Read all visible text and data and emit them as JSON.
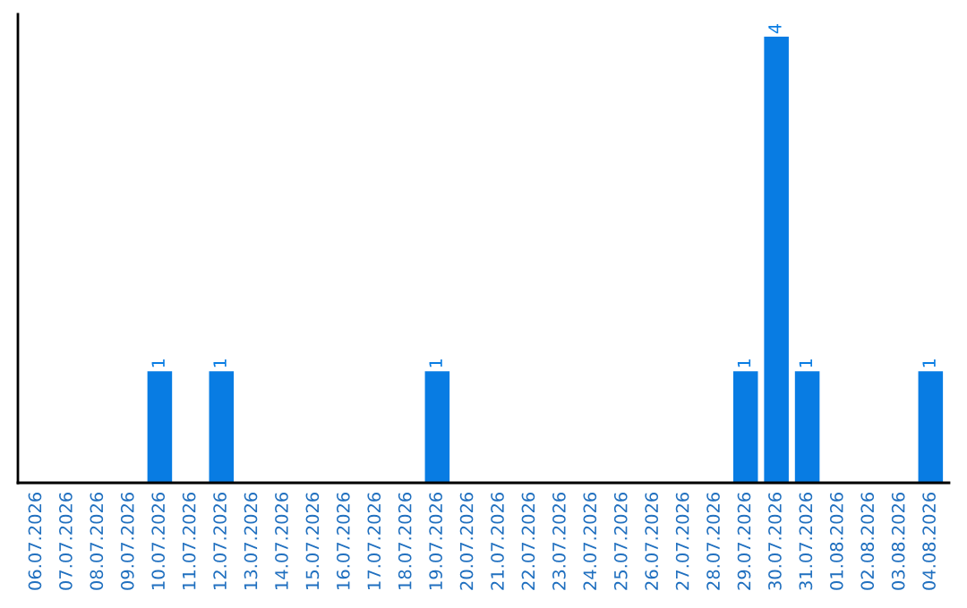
{
  "chart_data": {
    "type": "bar",
    "categories": [
      "06.07.2026",
      "07.07.2026",
      "08.07.2026",
      "09.07.2026",
      "10.07.2026",
      "11.07.2026",
      "12.07.2026",
      "13.07.2026",
      "14.07.2026",
      "15.07.2026",
      "16.07.2026",
      "17.07.2026",
      "18.07.2026",
      "19.07.2026",
      "20.07.2026",
      "21.07.2026",
      "22.07.2026",
      "23.07.2026",
      "24.07.2026",
      "25.07.2026",
      "26.07.2026",
      "27.07.2026",
      "28.07.2026",
      "29.07.2026",
      "30.07.2026",
      "31.07.2026",
      "01.08.2026",
      "02.08.2026",
      "03.08.2026",
      "04.08.2026"
    ],
    "values": [
      0,
      0,
      0,
      0,
      1,
      0,
      1,
      0,
      0,
      0,
      0,
      0,
      0,
      1,
      0,
      0,
      0,
      0,
      0,
      0,
      0,
      0,
      0,
      1,
      4,
      1,
      0,
      0,
      0,
      1
    ],
    "value_labels": [
      null,
      null,
      null,
      null,
      "1",
      null,
      "1",
      null,
      null,
      null,
      null,
      null,
      null,
      "1",
      null,
      null,
      null,
      null,
      null,
      null,
      null,
      null,
      null,
      "1",
      "4",
      "1",
      null,
      null,
      null,
      "1"
    ],
    "color": "#087ce3",
    "tick_labels": "x",
    "grid": false
  }
}
